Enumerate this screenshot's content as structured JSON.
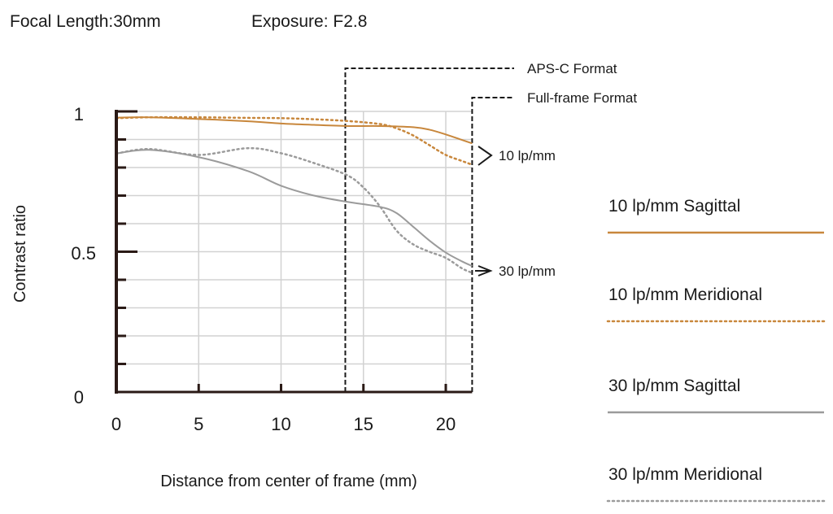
{
  "header": {
    "focal_length": "Focal Length:30mm",
    "exposure": "Exposure: F2.8"
  },
  "chart_data": {
    "type": "line",
    "title": "",
    "xlabel": "Distance from center of frame (mm)",
    "ylabel": "Contrast ratio",
    "xlim": [
      0,
      21.6
    ],
    "ylim": [
      0,
      1
    ],
    "x_ticks": [
      "0",
      "5",
      "10",
      "15",
      "20"
    ],
    "y_ticks": [
      "1",
      "0.5",
      "0"
    ],
    "grid": true,
    "legend_position": "right",
    "series": [
      {
        "name": "10 lp/mm Sagittal",
        "color": "#c8873c",
        "style": "solid",
        "x": [
          0,
          2,
          5,
          8,
          10,
          12,
          14,
          16,
          18,
          19,
          20,
          21,
          21.6
        ],
        "y": [
          0.978,
          0.979,
          0.973,
          0.965,
          0.957,
          0.952,
          0.948,
          0.948,
          0.944,
          0.935,
          0.918,
          0.898,
          0.886
        ]
      },
      {
        "name": "10 lp/mm Meridional",
        "color": "#c8873c",
        "style": "dotted",
        "x": [
          0,
          2,
          5,
          8,
          10,
          12,
          14,
          16,
          17,
          18,
          19,
          20,
          21,
          21.6
        ],
        "y": [
          0.976,
          0.979,
          0.979,
          0.977,
          0.976,
          0.972,
          0.966,
          0.955,
          0.94,
          0.915,
          0.88,
          0.845,
          0.823,
          0.81
        ]
      },
      {
        "name": "30 lp/mm Sagittal",
        "color": "#9b9b9b",
        "style": "solid",
        "x": [
          0,
          2,
          5,
          8,
          10,
          12,
          14,
          16,
          17,
          18,
          19,
          20,
          21,
          21.6
        ],
        "y": [
          0.85,
          0.863,
          0.837,
          0.787,
          0.735,
          0.7,
          0.678,
          0.66,
          0.638,
          0.59,
          0.54,
          0.497,
          0.465,
          0.449
        ]
      },
      {
        "name": "30 lp/mm Meridional",
        "color": "#9b9b9b",
        "style": "dotted",
        "x": [
          0,
          2,
          5,
          8,
          10,
          12,
          14,
          15,
          16,
          17,
          18,
          19,
          20,
          21,
          21.6
        ],
        "y": [
          0.85,
          0.866,
          0.845,
          0.869,
          0.851,
          0.816,
          0.773,
          0.729,
          0.662,
          0.576,
          0.527,
          0.5,
          0.478,
          0.44,
          0.425
        ]
      }
    ],
    "annotations": {
      "aps_c": {
        "label": "APS-C Format",
        "x": 13.9
      },
      "full_frame": {
        "label": "Full-frame Format",
        "x": 21.6
      },
      "group_10": "10 lp/mm",
      "group_30": "30 lp/mm"
    }
  }
}
